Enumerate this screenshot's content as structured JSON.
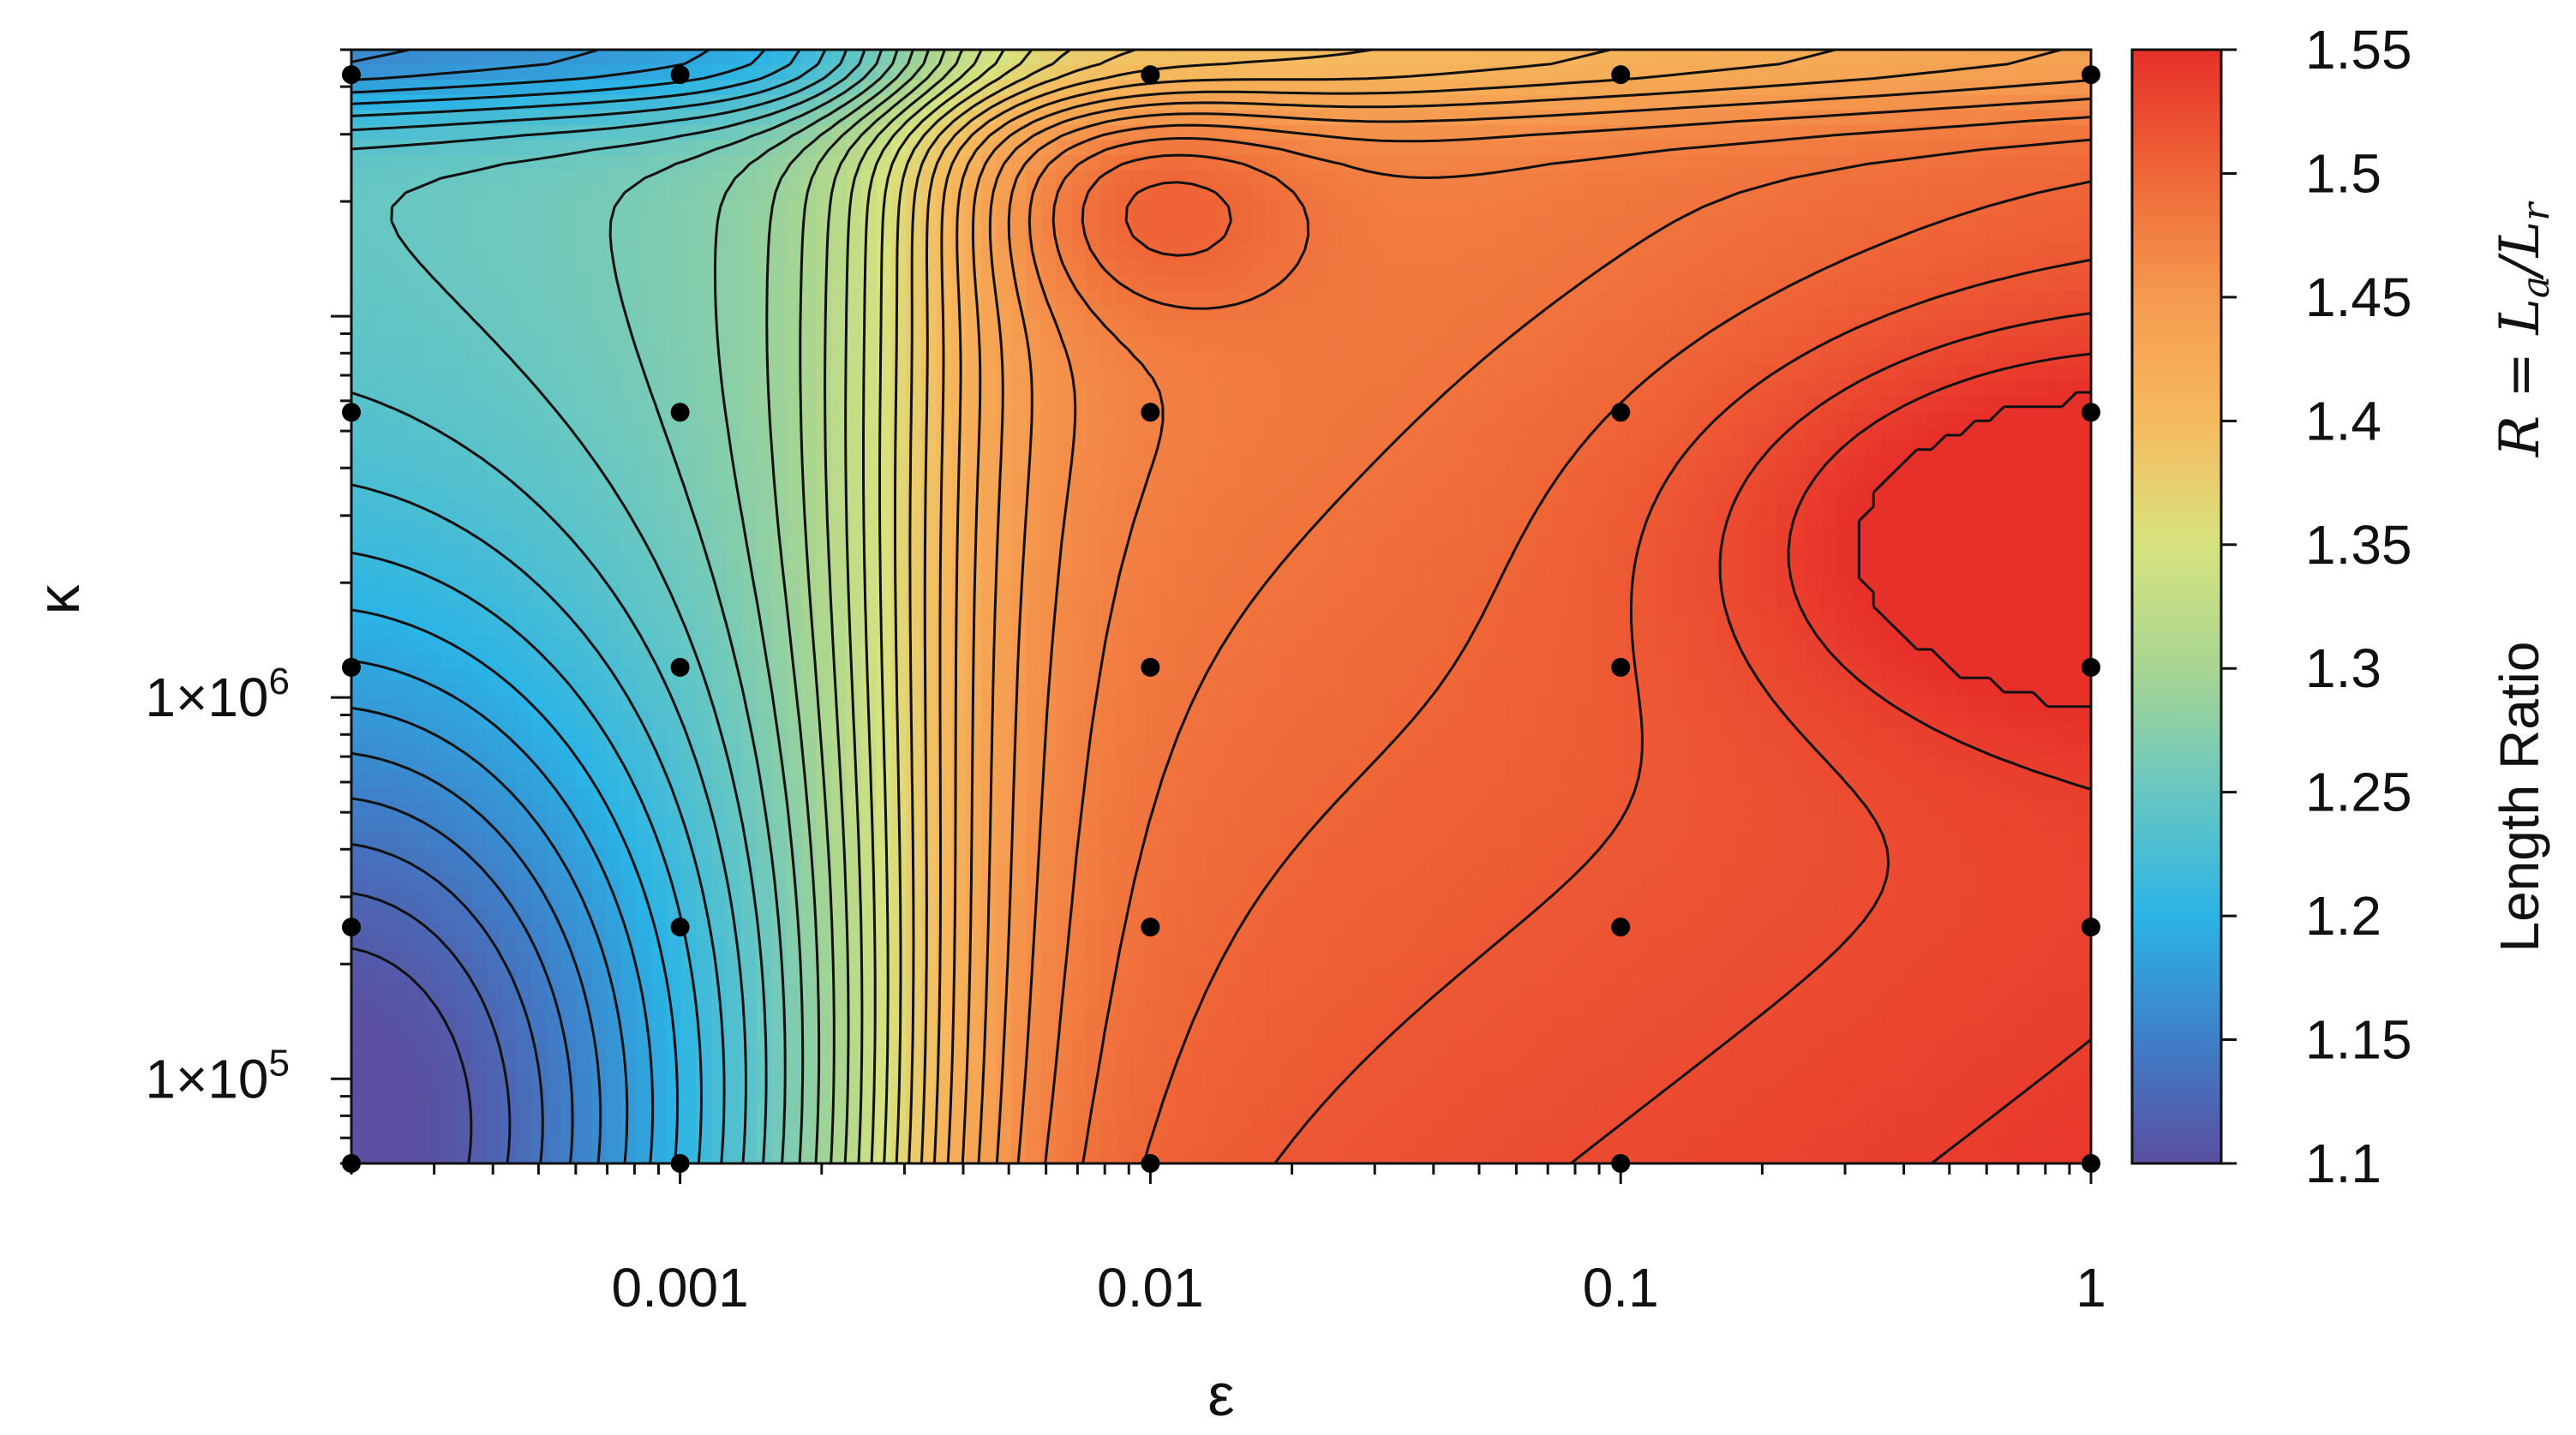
{
  "chart_data": {
    "type": "heatmap",
    "subtype": "contour",
    "title": "",
    "xlabel": "ε",
    "ylabel": "κ",
    "x_scale": "log",
    "y_scale": "log",
    "xlim": [
      0.0002,
      1
    ],
    "ylim": [
      60000,
      50000000
    ],
    "x_ticks": [
      {
        "value": 0.001,
        "label": "0.001"
      },
      {
        "value": 0.01,
        "label": "0.01"
      },
      {
        "value": 0.1,
        "label": "0.1"
      },
      {
        "value": 1,
        "label": "1"
      }
    ],
    "y_ticks": [
      {
        "value": 100000,
        "label": "1×10",
        "exp": "5"
      },
      {
        "value": 1000000,
        "label": "1×10",
        "exp": "6"
      }
    ],
    "colorbar": {
      "label": "Length Ratio",
      "math_label": "R = La/Lr",
      "range": [
        1.1,
        1.55
      ],
      "ticks": [
        "1.55",
        "1.5",
        "1.45",
        "1.4",
        "1.35",
        "1.3",
        "1.25",
        "1.2",
        "1.15",
        "1.1"
      ],
      "colormap": [
        "#5a4fa0",
        "#3f7fc8",
        "#2bb4e6",
        "#68c7c2",
        "#a8d591",
        "#d7e37f",
        "#f6ba5e",
        "#f59a4f",
        "#ef6637",
        "#e7302a"
      ]
    },
    "sample_points": {
      "x": [
        0.0002,
        0.001,
        0.01,
        0.1,
        1
      ],
      "y": [
        60000,
        250000,
        1200000,
        5600000,
        43000000
      ]
    },
    "grid": false,
    "contour_lines": true,
    "legend": "none"
  }
}
